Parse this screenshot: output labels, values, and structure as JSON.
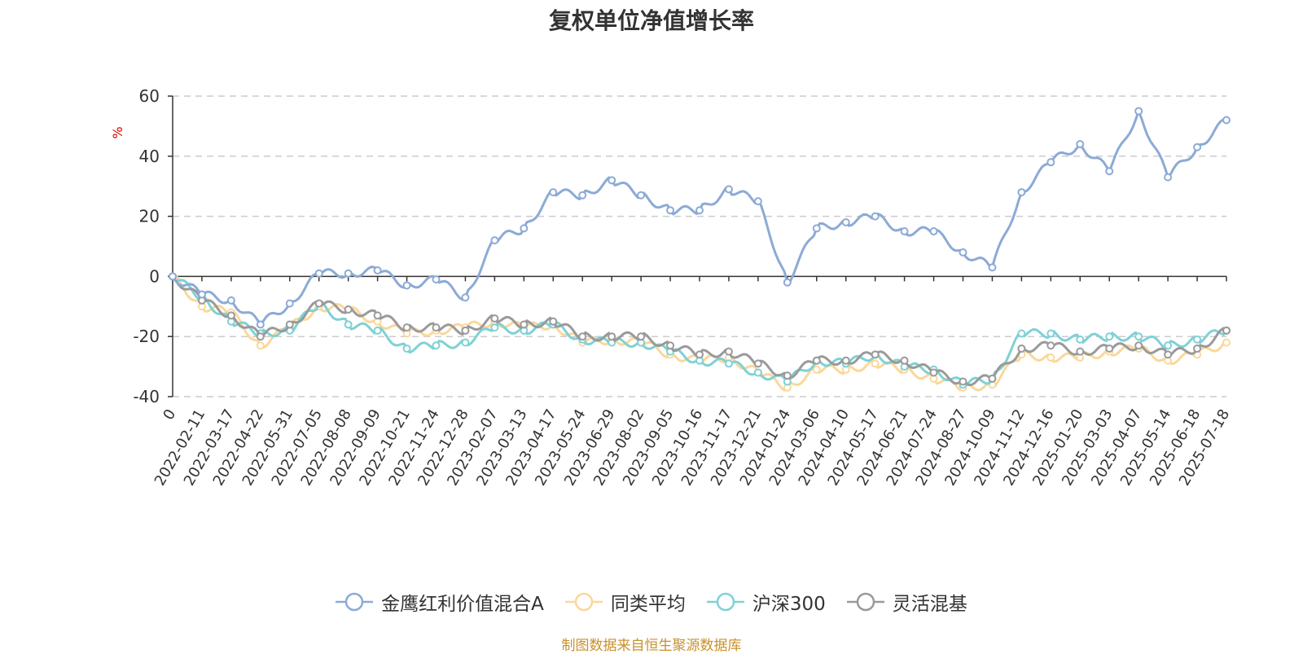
{
  "chart_data": {
    "type": "line",
    "title": "复权单位净值增长率",
    "ylabel": "%",
    "ylim": [
      -40,
      60
    ],
    "y_ticks": [
      "60",
      "40",
      "20",
      "0",
      "-20",
      "-40"
    ],
    "grid": true,
    "legend_position": "bottom",
    "source": "制图数据来自恒生聚源数据库",
    "categories": [
      "0",
      "2022-02-11",
      "2022-03-17",
      "2022-04-22",
      "2022-05-31",
      "2022-07-05",
      "2022-08-08",
      "2022-09-09",
      "2022-10-21",
      "2022-11-24",
      "2022-12-28",
      "2023-02-07",
      "2023-03-13",
      "2023-04-17",
      "2023-05-24",
      "2023-06-29",
      "2023-08-02",
      "2023-09-05",
      "2023-10-16",
      "2023-11-17",
      "2023-12-21",
      "2024-01-24",
      "2024-03-06",
      "2024-04-10",
      "2024-05-17",
      "2024-06-21",
      "2024-07-24",
      "2024-08-27",
      "2024-10-09",
      "2024-11-12",
      "2024-12-16",
      "2025-01-20",
      "2025-03-03",
      "2025-04-07",
      "2025-05-14",
      "2025-06-18",
      "2025-07-18"
    ],
    "series": [
      {
        "name": "金鹰红利价值混合A",
        "color": "#8caad6",
        "values": [
          0,
          -6,
          -8,
          -16,
          -9,
          1,
          1,
          2,
          -3,
          -1,
          -7,
          12,
          16,
          28,
          27,
          32,
          27,
          22,
          22,
          29,
          25,
          -2,
          16,
          18,
          20,
          15,
          15,
          8,
          3,
          28,
          38,
          44,
          35,
          55,
          33,
          43,
          52
        ]
      },
      {
        "name": "同类平均",
        "color": "#fad89a",
        "values": [
          0,
          -10,
          -12,
          -23,
          -17,
          -10,
          -11,
          -15,
          -19,
          -18,
          -17,
          -15,
          -17,
          -16,
          -22,
          -21,
          -22,
          -26,
          -28,
          -27,
          -32,
          -37,
          -31,
          -31,
          -29,
          -31,
          -34,
          -37,
          -36,
          -26,
          -27,
          -27,
          -25,
          -24,
          -28,
          -26,
          -22
        ]
      },
      {
        "name": "沪深300",
        "color": "#7fd1d6",
        "values": [
          0,
          -7,
          -15,
          -19,
          -18,
          -9,
          -16,
          -18,
          -24,
          -23,
          -22,
          -17,
          -18,
          -16,
          -21,
          -22,
          -22,
          -25,
          -28,
          -29,
          -32,
          -35,
          -28,
          -29,
          -26,
          -30,
          -31,
          -36,
          -34,
          -19,
          -19,
          -21,
          -20,
          -20,
          -23,
          -21,
          -18
        ]
      },
      {
        "name": "灵活混基",
        "color": "#9a9a9a",
        "values": [
          0,
          -8,
          -13,
          -20,
          -16,
          -9,
          -11,
          -13,
          -17,
          -17,
          -18,
          -14,
          -16,
          -15,
          -20,
          -20,
          -20,
          -23,
          -26,
          -25,
          -29,
          -33,
          -28,
          -28,
          -26,
          -28,
          -32,
          -35,
          -34,
          -24,
          -23,
          -25,
          -24,
          -23,
          -26,
          -24,
          -18
        ]
      }
    ]
  }
}
